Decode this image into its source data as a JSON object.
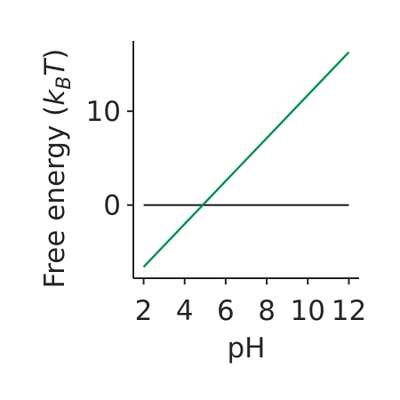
{
  "chart_data": {
    "type": "line",
    "xlabel": "pH",
    "ylabel": {
      "prefix": "Free energy (",
      "var": "k",
      "sub": "B",
      "var2": "T",
      "suffix": ")"
    },
    "xlim": [
      1.5,
      12.5
    ],
    "ylim": [
      -7.8,
      17.5
    ],
    "xticks": [
      2,
      4,
      6,
      8,
      10,
      12
    ],
    "yticks": [
      0,
      10
    ],
    "series": [
      {
        "x": [
          2,
          12
        ],
        "y": [
          0,
          0
        ],
        "color": "#262626"
      },
      {
        "x": [
          2,
          12
        ],
        "y": [
          -6.6,
          16.3
        ],
        "color": "#009150"
      }
    ],
    "grid": false
  }
}
